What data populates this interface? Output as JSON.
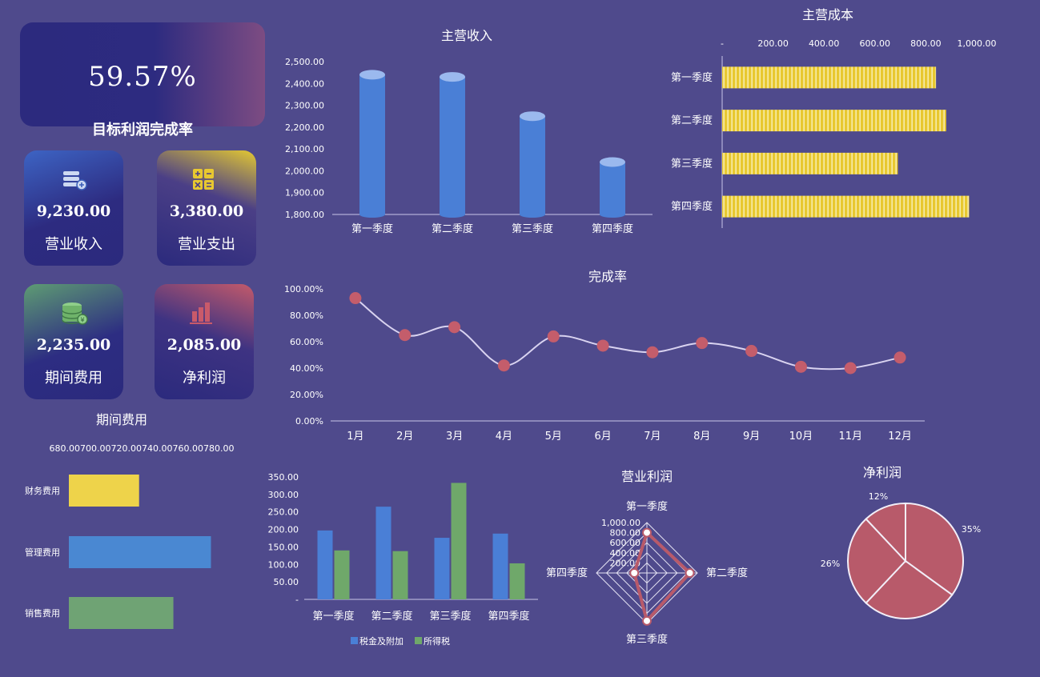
{
  "kpi_main": {
    "value": "59.57%",
    "label": "目标利润完成率"
  },
  "cards": {
    "revenue": {
      "value": "9,230.00",
      "label": "营业收入",
      "icon": "coins-plus-icon"
    },
    "expense": {
      "value": "3,380.00",
      "label": "营业支出",
      "icon": "calculator-icon"
    },
    "period": {
      "value": "2,235.00",
      "label": "期间费用",
      "icon": "coin-stack-yen-icon"
    },
    "net": {
      "value": "2,085.00",
      "label": "净利润",
      "icon": "bar-chart-icon"
    }
  },
  "colors": {
    "background": "#4f4a8c",
    "blue": "#4a7fd6",
    "gold": "#e8c830",
    "green": "#6fa86a",
    "red": "#b85a6a"
  },
  "chart_data": [
    {
      "id": "main-revenue",
      "type": "bar",
      "style": "cylinder",
      "title": "主营收入",
      "categories": [
        "第一季度",
        "第二季度",
        "第三季度",
        "第四季度"
      ],
      "values": [
        2440,
        2430,
        2250,
        2040
      ],
      "ylim": [
        1800,
        2500
      ],
      "yticks": [
        "1,800.00",
        "1,900.00",
        "2,000.00",
        "2,100.00",
        "2,200.00",
        "2,300.00",
        "2,400.00",
        "2,500.00"
      ]
    },
    {
      "id": "main-cost",
      "type": "bar",
      "orientation": "horizontal",
      "title": "主营成本",
      "categories": [
        "第一季度",
        "第二季度",
        "第三季度",
        "第四季度"
      ],
      "values": [
        840,
        880,
        690,
        970
      ],
      "xlim": [
        0,
        1000
      ],
      "xticks": [
        "-",
        "200.00",
        "400.00",
        "600.00",
        "800.00",
        "1,000.00"
      ],
      "axis_position": "top"
    },
    {
      "id": "completion-rate",
      "type": "line",
      "smooth": true,
      "title": "完成率",
      "categories": [
        "1月",
        "2月",
        "3月",
        "4月",
        "5月",
        "6月",
        "7月",
        "8月",
        "9月",
        "10月",
        "11月",
        "12月"
      ],
      "values": [
        93,
        65,
        71,
        42,
        64,
        57,
        52,
        59,
        53,
        41,
        40,
        48
      ],
      "ylim": [
        0,
        100
      ],
      "yticks": [
        "0.00%",
        "20.00%",
        "40.00%",
        "60.00%",
        "80.00%",
        "100.00%"
      ]
    },
    {
      "id": "period-expense",
      "type": "bar",
      "orientation": "horizontal",
      "title": "期间费用",
      "categories": [
        "财务费用",
        "管理费用",
        "销售费用"
      ],
      "values": [
        723,
        767,
        744
      ],
      "xlim": [
        680,
        780
      ],
      "xticks": [
        "680.00",
        "700.00",
        "720.00",
        "740.00",
        "760.00",
        "780.00"
      ],
      "colors": [
        "#eed34a",
        "#4a88d2",
        "#6fa374"
      ]
    },
    {
      "id": "taxes",
      "type": "bar",
      "categories": [
        "第一季度",
        "第二季度",
        "第三季度",
        "第四季度"
      ],
      "series": [
        {
          "name": "税金及附加",
          "values": [
            197,
            265,
            176,
            188
          ],
          "color": "#4a7fd6"
        },
        {
          "name": "所得税",
          "values": [
            140,
            138,
            333,
            103
          ],
          "color": "#6fa86a"
        }
      ],
      "ylim": [
        0,
        350
      ],
      "yticks": [
        "-",
        "50.00",
        "100.00",
        "150.00",
        "200.00",
        "250.00",
        "300.00",
        "350.00"
      ],
      "legend": "bottom"
    },
    {
      "id": "operating-profit",
      "type": "radar",
      "title": "营业利润",
      "categories": [
        "第一季度",
        "第二季度",
        "第三季度",
        "第四季度"
      ],
      "values": [
        800,
        850,
        950,
        250
      ],
      "rlim": [
        0,
        1000
      ],
      "rticks": [
        "-",
        "200.00",
        "400.00",
        "600.00",
        "800.00",
        "1,000.00"
      ]
    },
    {
      "id": "net-profit",
      "type": "pie",
      "title": "净利润",
      "values": [
        35,
        27,
        26,
        12
      ],
      "labels": [
        "35%",
        "",
        "26%",
        "12%"
      ],
      "color": "#b85a6a"
    }
  ]
}
